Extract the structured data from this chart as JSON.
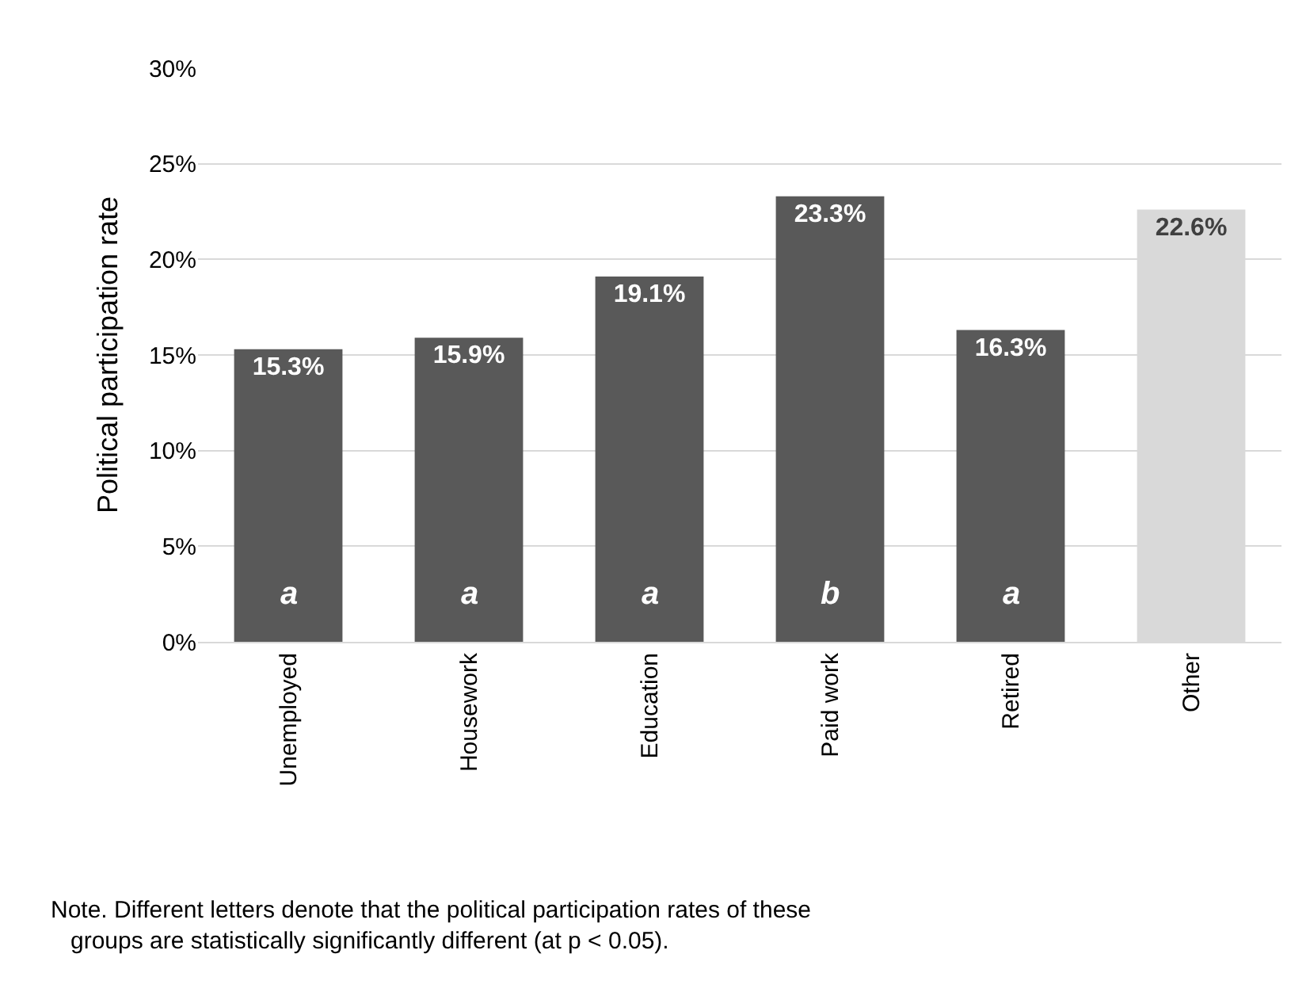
{
  "chart_data": {
    "type": "bar",
    "ylabel": "Political participation rate",
    "categories": [
      "Unemployed",
      "Housework",
      "Education",
      "Paid work",
      "Retired",
      "Other"
    ],
    "values": [
      15.3,
      15.9,
      19.1,
      23.3,
      16.3,
      22.6
    ],
    "colors": [
      "#595959",
      "#595959",
      "#595959",
      "#595959",
      "#595959",
      "#d9d9d9"
    ],
    "value_labels": [
      "15.3%",
      "15.9%",
      "19.1%",
      "23.3%",
      "16.3%",
      "22.6%"
    ],
    "ylim": [
      0,
      30
    ],
    "yticks": [
      {
        "value": 0,
        "label": "0%"
      },
      {
        "value": 5,
        "label": "5%"
      },
      {
        "value": 10,
        "label": "10%"
      },
      {
        "value": 15,
        "label": "15%"
      },
      {
        "value": 20,
        "label": "20%"
      },
      {
        "value": 25,
        "label": "25%"
      },
      {
        "value": 30,
        "label": "30%"
      }
    ],
    "grid": "y",
    "legend": false,
    "annotations": [
      "a",
      "a",
      "a",
      "b",
      "a",
      "Note. Different letters denote that the political participation rates of these groups are statistically significantly different (at p < 0.05)."
    ]
  }
}
